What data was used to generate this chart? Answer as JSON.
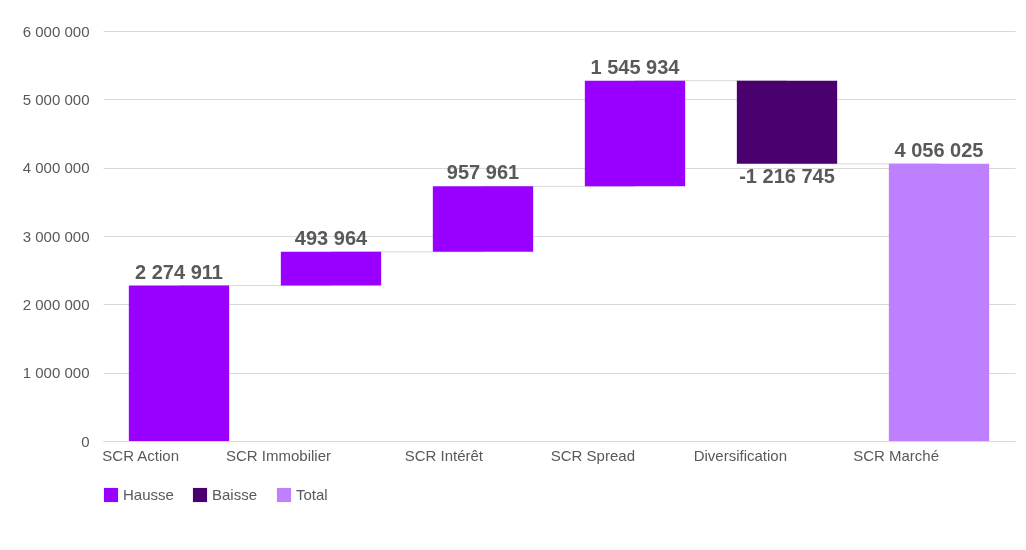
{
  "chart_data": {
    "type": "bar",
    "categories": [
      "SCR Action",
      "SCR Immobilier",
      "SCR Intérêt",
      "SCR Spread",
      "Diversification",
      "SCR Marché"
    ],
    "series": [
      {
        "name": "Hausse",
        "color": "#9900ff",
        "values": [
          2274911,
          493964,
          957961,
          1545934,
          null,
          null
        ],
        "base": [
          0,
          2274911,
          2768875,
          3726836,
          null,
          null
        ],
        "value_labels": [
          "2 274 911",
          "493 964",
          "957 961",
          "1 545 934",
          null,
          null
        ]
      },
      {
        "name": "Baisse",
        "color": "#4b0070",
        "values": [
          null,
          null,
          null,
          null,
          -1216745,
          null
        ],
        "base": [
          null,
          null,
          null,
          null,
          5272770,
          null
        ],
        "value_labels": [
          null,
          null,
          null,
          null,
          "-1 216 745",
          null
        ]
      },
      {
        "name": "Total",
        "color": "#bf80ff",
        "values": [
          null,
          null,
          null,
          null,
          null,
          4056025
        ],
        "base": [
          null,
          null,
          null,
          null,
          null,
          0
        ],
        "value_labels": [
          null,
          null,
          null,
          null,
          null,
          "4 056 025"
        ]
      }
    ],
    "ylim": [
      0,
      6000000
    ],
    "yticks": [
      {
        "value": 0,
        "label": "0"
      },
      {
        "value": 1000000,
        "label": "1 000 000"
      },
      {
        "value": 2000000,
        "label": "2 000 000"
      },
      {
        "value": 3000000,
        "label": "3 000 000"
      },
      {
        "value": 4000000,
        "label": "4 000 000"
      },
      {
        "value": 5000000,
        "label": "5 000 000"
      },
      {
        "value": 6000000,
        "label": "6 000 000"
      }
    ],
    "grid": "y",
    "legend": "bottom"
  }
}
